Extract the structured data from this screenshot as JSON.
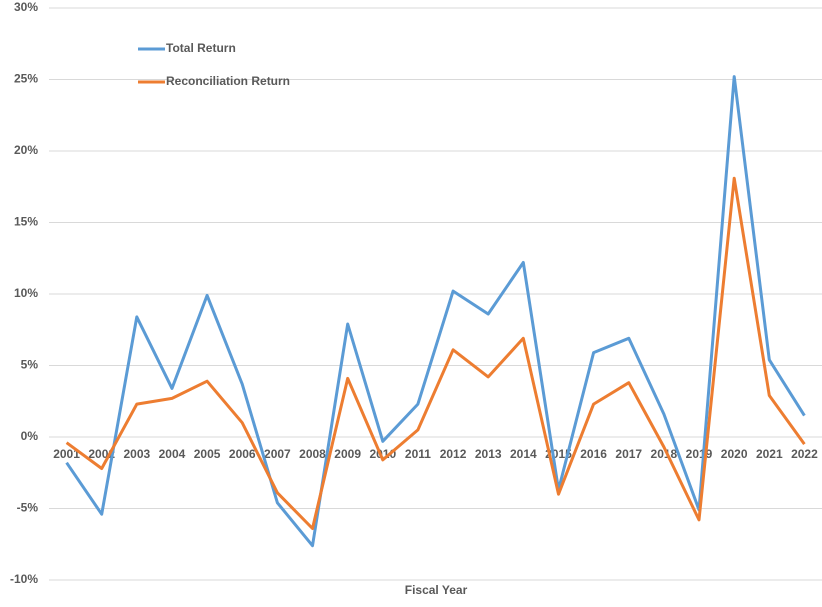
{
  "chart_data": {
    "type": "line",
    "x_label": "Fiscal Year",
    "categories": [
      "2001",
      "2002",
      "2003",
      "2004",
      "2005",
      "2006",
      "2007",
      "2008",
      "2009",
      "2010",
      "2011",
      "2012",
      "2013",
      "2014",
      "2015",
      "2016",
      "2017",
      "2018",
      "2019",
      "2020",
      "2021",
      "2022"
    ],
    "series": [
      {
        "name": "Total Return",
        "color": "#5b9bd5",
        "values": [
          -1.8,
          -5.4,
          8.4,
          3.4,
          9.9,
          3.7,
          -4.6,
          -7.6,
          7.9,
          -0.3,
          2.3,
          10.2,
          8.6,
          12.2,
          -3.7,
          5.9,
          6.9,
          1.6,
          -5.1,
          25.2,
          5.4,
          1.5
        ]
      },
      {
        "name": "Reconciliation Return",
        "color": "#ed7d31",
        "values": [
          -0.4,
          -2.2,
          2.3,
          2.7,
          3.9,
          1.0,
          -3.9,
          -6.4,
          4.1,
          -1.6,
          0.5,
          6.1,
          4.2,
          6.9,
          -4.0,
          2.3,
          3.8,
          -0.7,
          -5.8,
          18.1,
          2.9,
          -0.5
        ]
      }
    ],
    "ylim": [
      -10,
      30
    ],
    "yticks": [
      {
        "value": -10,
        "label": "-10%"
      },
      {
        "value": -5,
        "label": "-5%"
      },
      {
        "value": 0,
        "label": "0%"
      },
      {
        "value": 5,
        "label": "5%"
      },
      {
        "value": 10,
        "label": "10%"
      },
      {
        "value": 15,
        "label": "15%"
      },
      {
        "value": 20,
        "label": "20%"
      },
      {
        "value": 25,
        "label": "25%"
      },
      {
        "value": 30,
        "label": "30%"
      }
    ],
    "grid": true,
    "legend": "top-left"
  }
}
